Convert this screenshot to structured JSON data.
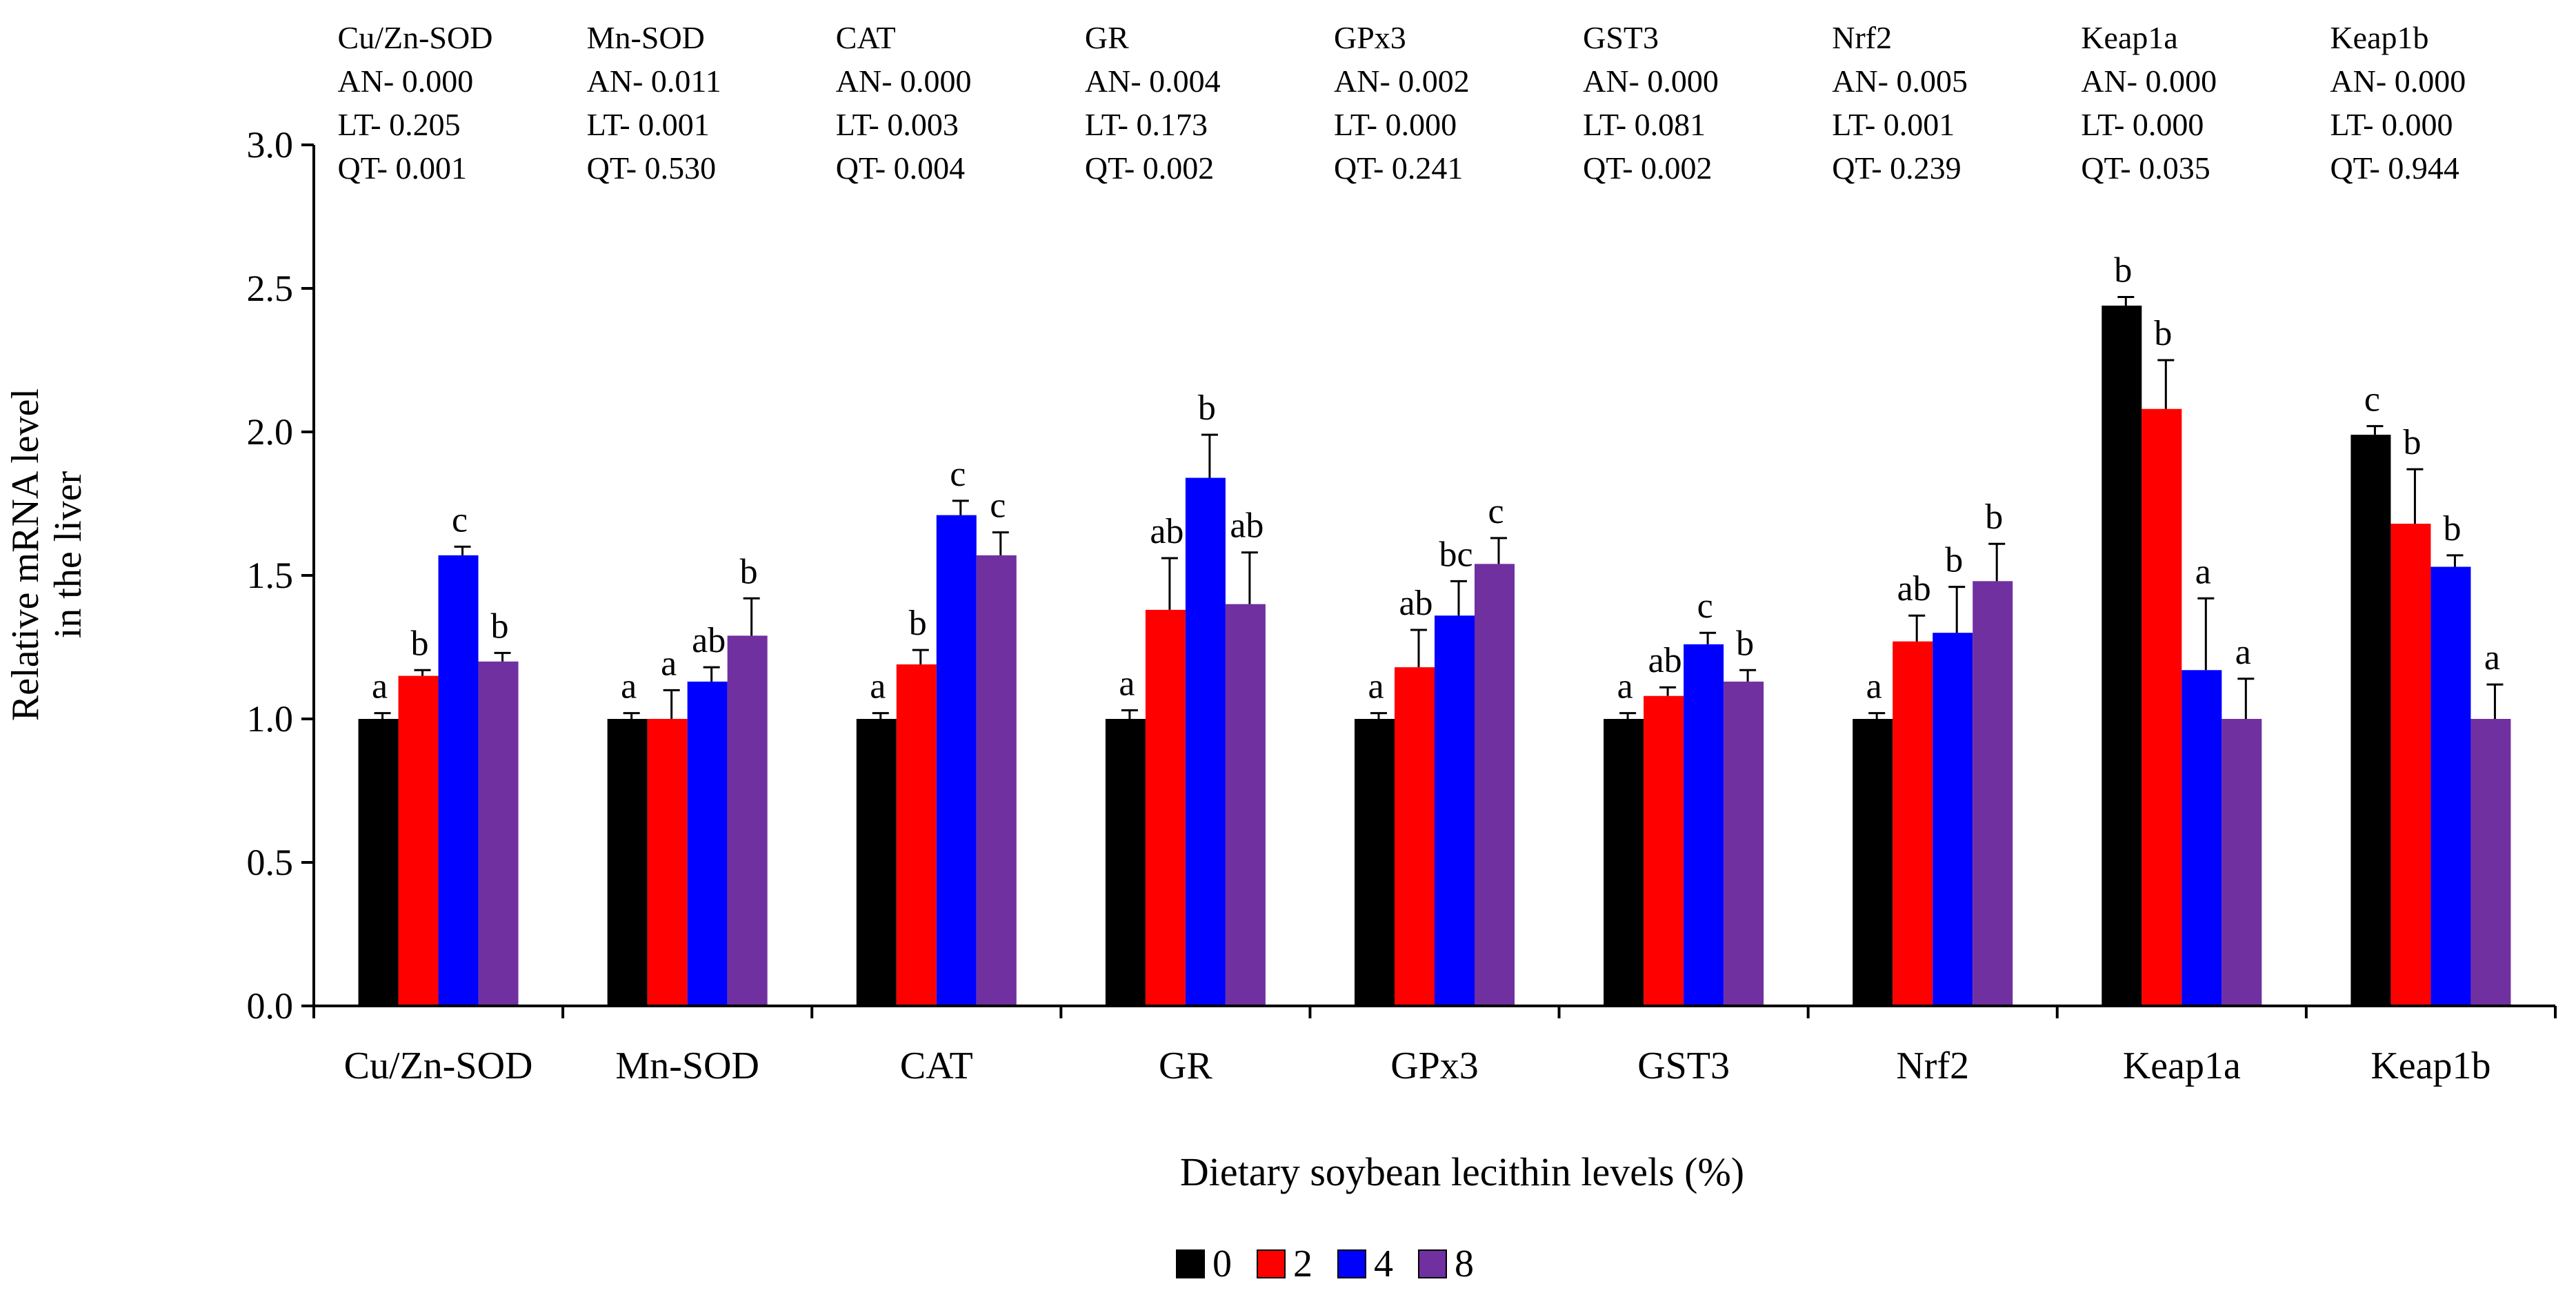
{
  "chart_data": {
    "type": "bar",
    "title": "",
    "ylabel": [
      "Relative mRNA level",
      "in the liver"
    ],
    "xlabel": "Dietary soybean lecithin levels (%)",
    "ylim": [
      0,
      3.0
    ],
    "yticks": [
      "0.0",
      "0.5",
      "1.0",
      "1.5",
      "2.0",
      "2.5",
      "3.0"
    ],
    "grid": false,
    "legend_position": "bottom-center",
    "categories": [
      "Cu/Zn-SOD",
      "Mn-SOD",
      "CAT",
      "GR",
      "GPx3",
      "GST3",
      "Nrf2",
      "Keap1a",
      "Keap1b"
    ],
    "series": [
      {
        "name": "0",
        "color": "#000000",
        "values": [
          1.0,
          1.0,
          1.0,
          1.0,
          1.0,
          1.0,
          1.0,
          2.44,
          1.99
        ],
        "errors": [
          0.02,
          0.02,
          0.02,
          0.03,
          0.02,
          0.02,
          0.02,
          0.03,
          0.03
        ],
        "letters": [
          "a",
          "a",
          "a",
          "a",
          "a",
          "a",
          "a",
          "b",
          "c"
        ]
      },
      {
        "name": "2",
        "color": "#ff0000",
        "values": [
          1.15,
          1.0,
          1.19,
          1.38,
          1.18,
          1.08,
          1.27,
          2.08,
          1.68
        ],
        "errors": [
          0.02,
          0.1,
          0.05,
          0.18,
          0.13,
          0.03,
          0.09,
          0.17,
          0.19
        ],
        "letters": [
          "b",
          "a",
          "b",
          "ab",
          "ab",
          "ab",
          "ab",
          "b",
          "b"
        ]
      },
      {
        "name": "4",
        "color": "#0000ff",
        "values": [
          1.57,
          1.13,
          1.71,
          1.84,
          1.36,
          1.26,
          1.3,
          1.17,
          1.53
        ],
        "errors": [
          0.03,
          0.05,
          0.05,
          0.15,
          0.12,
          0.04,
          0.16,
          0.25,
          0.04
        ],
        "letters": [
          "c",
          "ab",
          "c",
          "b",
          "bc",
          "c",
          "b",
          "a",
          "b"
        ]
      },
      {
        "name": "8",
        "color": "#7030a0",
        "values": [
          1.2,
          1.29,
          1.57,
          1.4,
          1.54,
          1.13,
          1.48,
          1.0,
          1.0
        ],
        "errors": [
          0.03,
          0.13,
          0.08,
          0.18,
          0.09,
          0.04,
          0.13,
          0.14,
          0.12
        ],
        "letters": [
          "b",
          "b",
          "c",
          "ab",
          "c",
          "b",
          "b",
          "a",
          "a"
        ]
      }
    ],
    "annotations": [
      {
        "gene": "Cu/Zn-SOD",
        "lines": [
          "Cu/Zn-SOD",
          "AN- 0.000",
          "LT- 0.205",
          "QT- 0.001"
        ]
      },
      {
        "gene": "Mn-SOD",
        "lines": [
          "Mn-SOD",
          "AN- 0.011",
          "LT- 0.001",
          "QT- 0.530"
        ]
      },
      {
        "gene": "CAT",
        "lines": [
          "CAT",
          "AN- 0.000",
          "LT- 0.003",
          "QT- 0.004"
        ]
      },
      {
        "gene": "GR",
        "lines": [
          "GR",
          "AN- 0.004",
          "LT- 0.173",
          "QT- 0.002"
        ]
      },
      {
        "gene": "GPx3",
        "lines": [
          "GPx3",
          "AN- 0.002",
          "LT- 0.000",
          "QT- 0.241"
        ]
      },
      {
        "gene": "GST3",
        "lines": [
          "GST3",
          "AN- 0.000",
          "LT- 0.081",
          "QT- 0.002"
        ]
      },
      {
        "gene": "Nrf2",
        "lines": [
          "Nrf2",
          "AN- 0.005",
          "LT- 0.001",
          "QT- 0.239"
        ]
      },
      {
        "gene": "Keap1a",
        "lines": [
          "Keap1a",
          "AN- 0.000",
          "LT- 0.000",
          "QT- 0.035"
        ]
      },
      {
        "gene": "Keap1b",
        "lines": [
          "Keap1b",
          "AN- 0.000",
          "LT- 0.000",
          "QT- 0.944"
        ]
      }
    ]
  }
}
